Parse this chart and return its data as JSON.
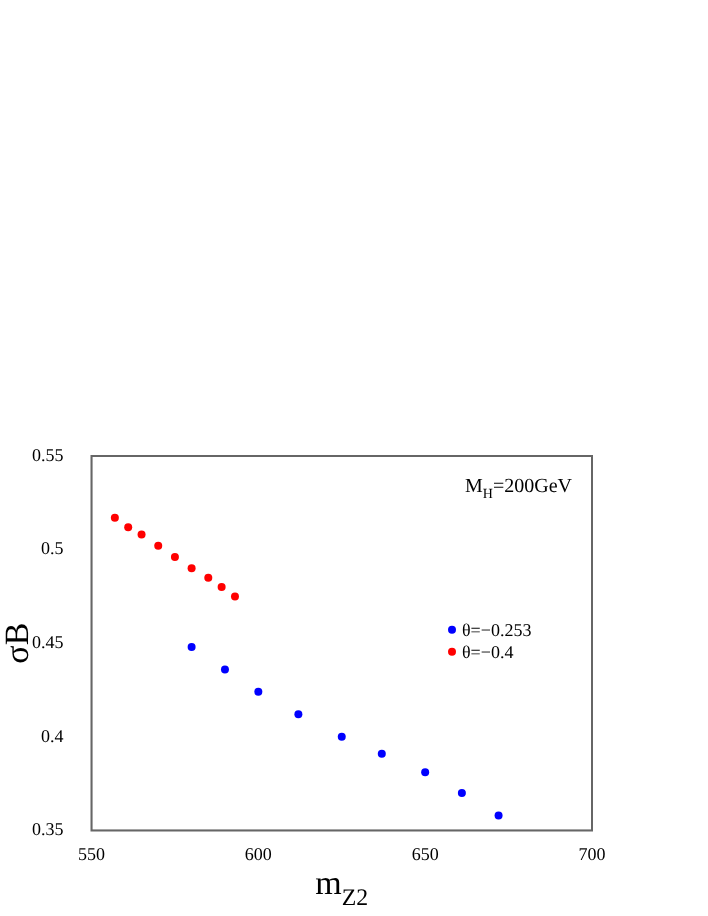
{
  "chart_data": {
    "type": "scatter",
    "xlabel": "m$_{Z2}$",
    "ylabel": "σB",
    "annotations": [
      "M$_{H}$=200GeV"
    ],
    "xlim": [
      550,
      700
    ],
    "xticks": [
      550,
      600,
      650,
      700
    ],
    "ylim": [
      0.35,
      0.55
    ],
    "yticks": [
      0.35,
      0.4,
      0.45,
      0.5,
      0.55
    ],
    "grid": false,
    "legend": "right",
    "marker": "circle",
    "series": [
      {
        "name": "θ=−0.253",
        "color": "#0000ff",
        "x": [
          580,
          590,
          600,
          612,
          625,
          637,
          650,
          661,
          672
        ],
        "values": [
          0.448,
          0.436,
          0.424,
          0.412,
          0.4,
          0.391,
          0.381,
          0.37,
          0.358
        ]
      },
      {
        "name": "θ=−0.4",
        "color": "#ff0000",
        "x": [
          557,
          561,
          565,
          570,
          575,
          580,
          585,
          589,
          593
        ],
        "values": [
          0.517,
          0.512,
          0.508,
          0.502,
          0.496,
          0.49,
          0.485,
          0.48,
          0.475
        ]
      }
    ]
  }
}
